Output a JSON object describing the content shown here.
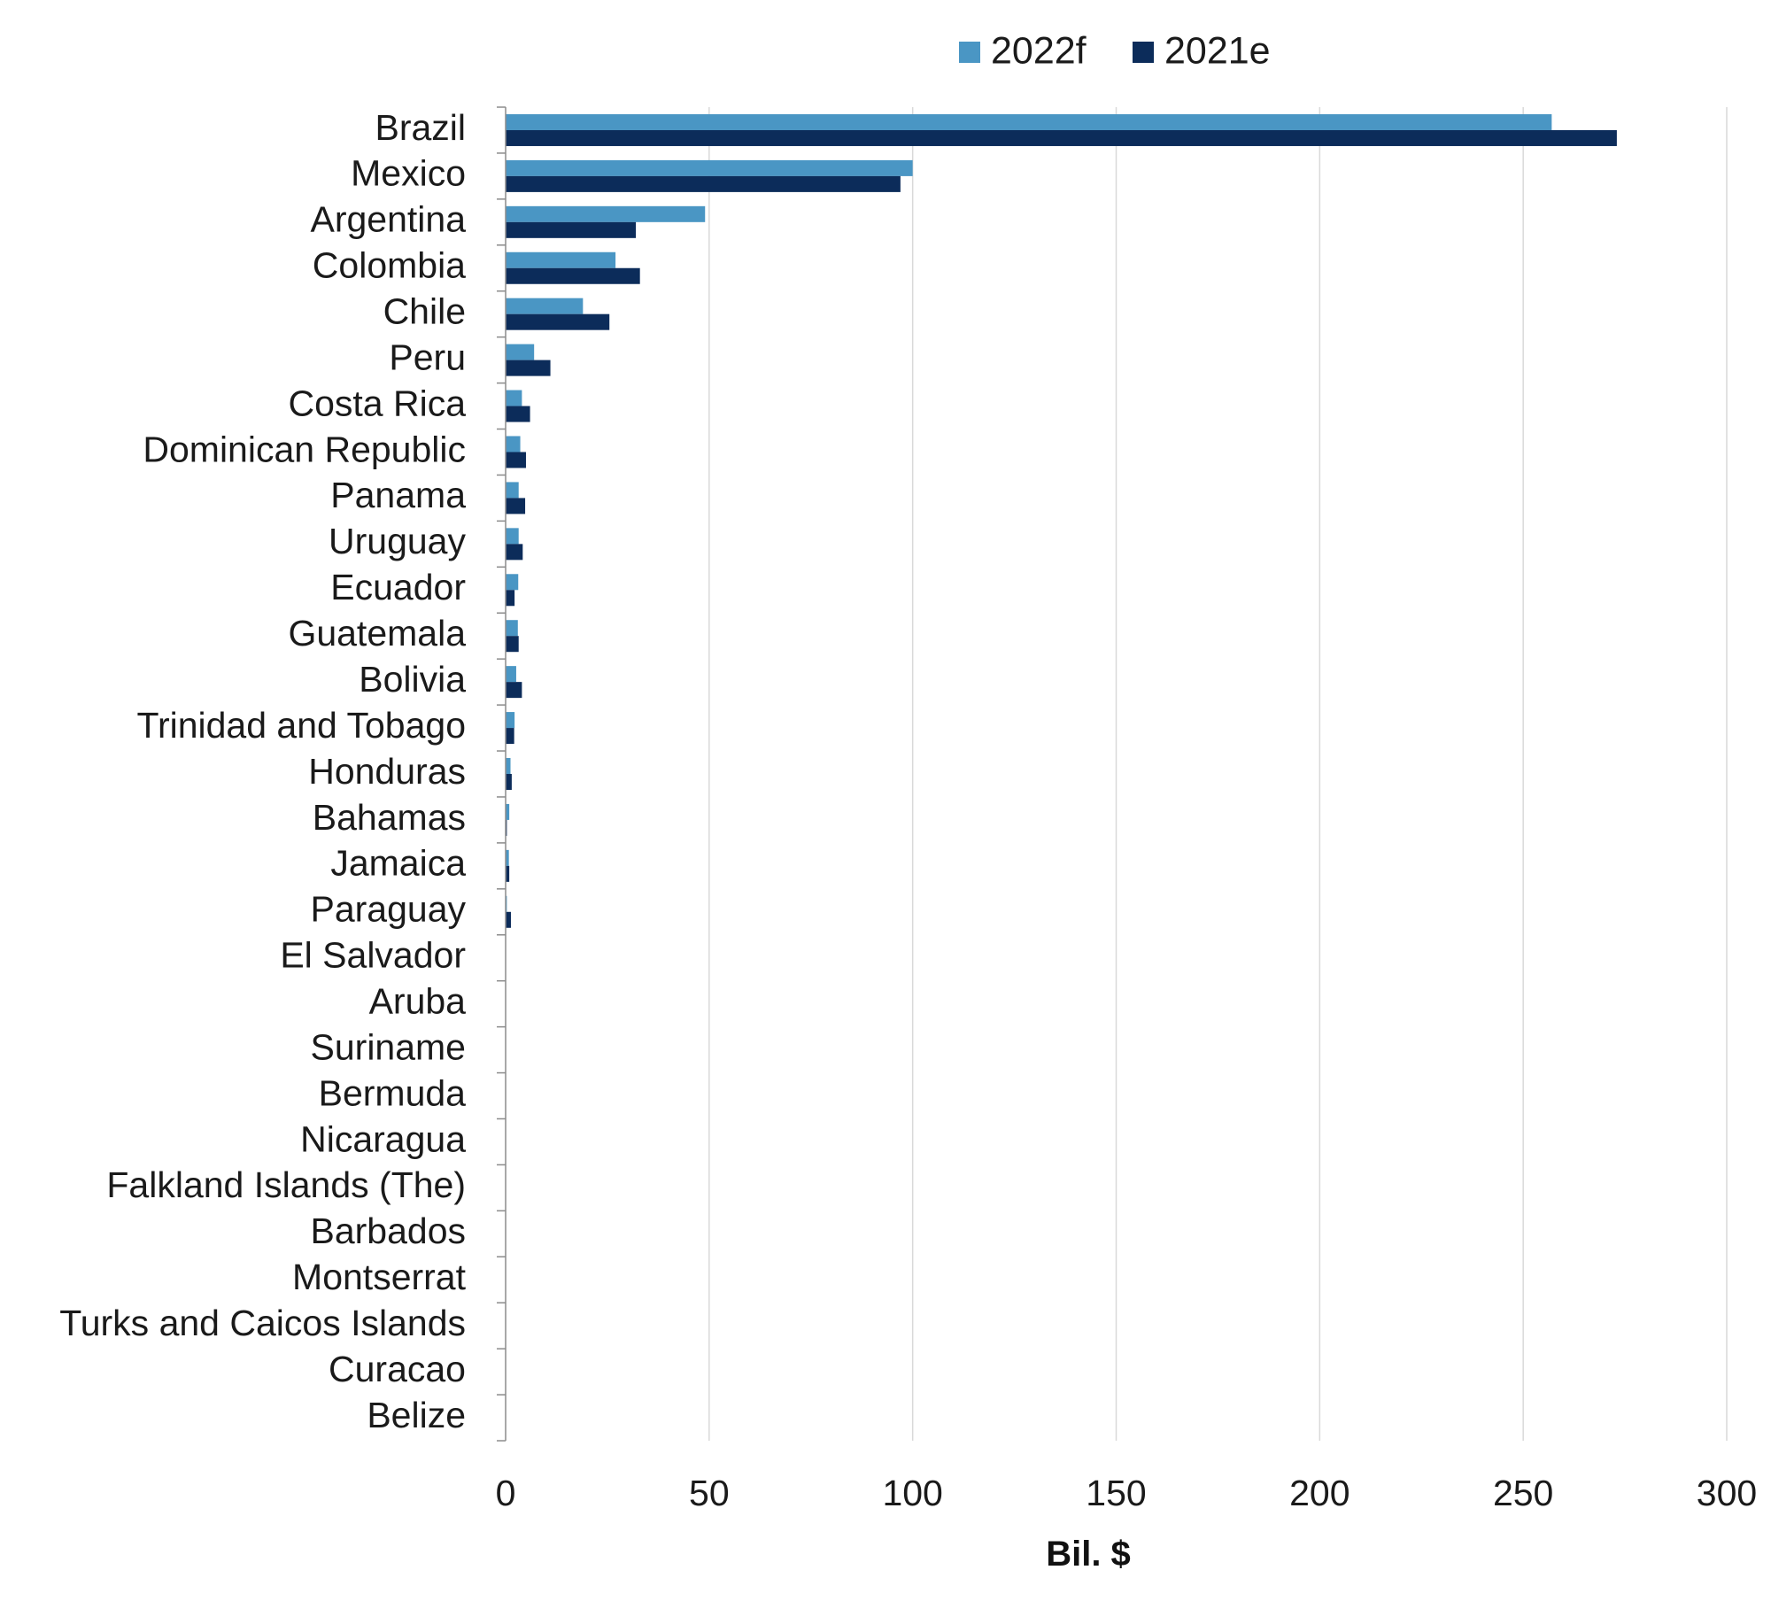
{
  "chart_data": {
    "type": "bar",
    "orientation": "horizontal",
    "categories": [
      "Brazil",
      "Mexico",
      "Argentina",
      "Colombia",
      "Chile",
      "Peru",
      "Costa Rica",
      "Dominican Republic",
      "Panama",
      "Uruguay",
      "Ecuador",
      "Guatemala",
      "Bolivia",
      "Trinidad and Tobago",
      "Honduras",
      "Bahamas",
      "Jamaica",
      "Paraguay",
      "El Salvador",
      "Aruba",
      "Suriname",
      "Bermuda",
      "Nicaragua",
      "Falkland Islands (The)",
      "Barbados",
      "Montserrat",
      "Turks and Caicos Islands",
      "Curacao",
      "Belize"
    ],
    "series": [
      {
        "name": "2022f",
        "color": "#4a96c4",
        "values": [
          257,
          100,
          49,
          27,
          19,
          7,
          4,
          3.6,
          3.2,
          3.2,
          3.1,
          3,
          2.6,
          2.2,
          1.2,
          0.9,
          0.8,
          0.3,
          0.1,
          0.1,
          0.1,
          0.1,
          0.1,
          0.1,
          0.05,
          0.05,
          0.05,
          0.05,
          0.05
        ]
      },
      {
        "name": "2021e",
        "color": "#0c2c5a",
        "values": [
          273,
          97,
          32,
          33,
          25.5,
          11,
          6,
          5,
          4.8,
          4.2,
          2.2,
          3.2,
          4,
          2.1,
          1.5,
          0.3,
          0.9,
          1.3,
          0.1,
          0.1,
          0.1,
          0.1,
          0.1,
          0.1,
          0.05,
          0.05,
          0.05,
          0.05,
          0.05
        ]
      }
    ],
    "xlabel": "Bil. $",
    "ylabel": "",
    "xlim": [
      0,
      300
    ],
    "xticks": [
      "0",
      "50",
      "100",
      "150",
      "200",
      "250",
      "300"
    ],
    "grid": true,
    "legend_position": "top"
  }
}
